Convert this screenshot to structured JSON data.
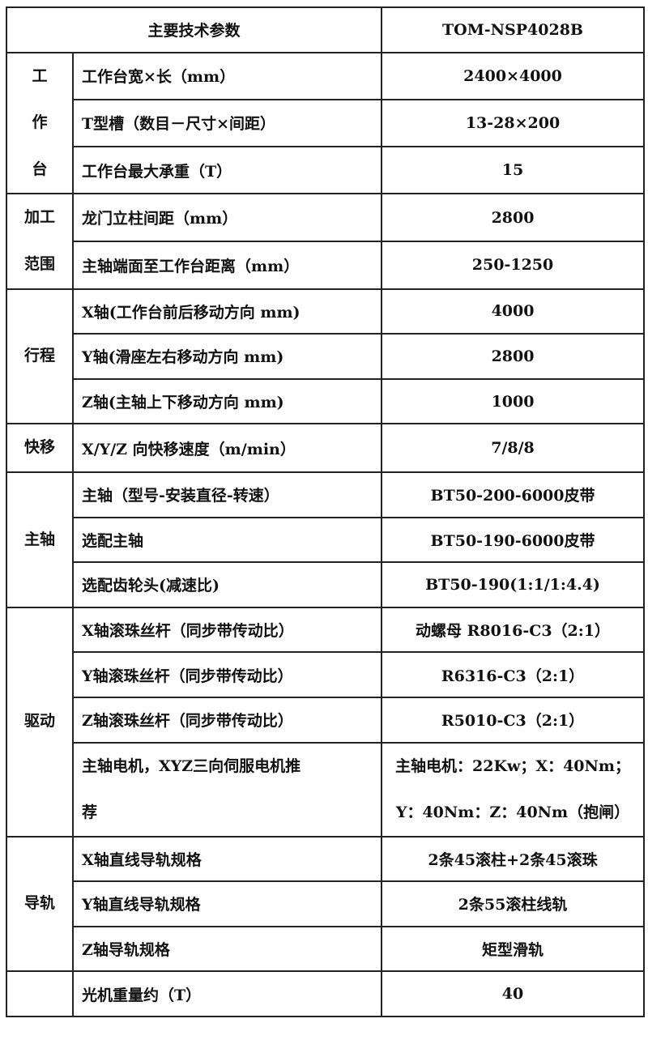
{
  "header": {
    "title": "主要技术参数",
    "model": "TOM-NSP4028B"
  },
  "groups": [
    {
      "label_lines": [
        "工",
        "作",
        "台"
      ],
      "rows": [
        {
          "param": "工作台宽×长（mm）",
          "value": "2400×4000"
        },
        {
          "param": "T型槽（数目－尺寸×间距）",
          "value": "13-28×200"
        },
        {
          "param": "工作台最大承重（T）",
          "value": "15"
        }
      ]
    },
    {
      "label_lines": [
        "加工",
        "范围"
      ],
      "rows": [
        {
          "param": "龙门立柱间距（mm）",
          "value": "2800"
        },
        {
          "param": "主轴端面至工作台距离（mm）",
          "value": "250-1250"
        }
      ]
    },
    {
      "label_lines": [
        "行程"
      ],
      "rows": [
        {
          "param": "X轴(工作台前后移动方向 mm)",
          "value": "4000"
        },
        {
          "param": "Y轴(滑座左右移动方向 mm)",
          "value": "2800"
        },
        {
          "param": "Z轴(主轴上下移动方向 mm)",
          "value": "1000"
        }
      ]
    },
    {
      "label_lines": [
        "快移"
      ],
      "rows": [
        {
          "param": "X/Y/Z 向快移速度（m/min）",
          "value": "7/8/8"
        }
      ]
    },
    {
      "label_lines": [
        "主轴"
      ],
      "rows": [
        {
          "param": "主轴（型号-安装直径-转速）",
          "value": "BT50-200-6000皮带"
        },
        {
          "param": "选配主轴",
          "value": "BT50-190-6000皮带"
        },
        {
          "param": "选配齿轮头(减速比)",
          "value": "BT50-190(1:1/1:4.4)"
        }
      ]
    },
    {
      "label_lines": [
        "驱动"
      ],
      "rows": [
        {
          "param": "X轴滚珠丝杆（同步带传动比）",
          "value": "动螺母 R8016-C3（2:1）"
        },
        {
          "param": "Y轴滚珠丝杆（同步带传动比）",
          "value": "R6316-C3（2:1）"
        },
        {
          "param": "Z轴滚珠丝杆（同步带传动比）",
          "value": "R5010-C3（2:1）"
        },
        {
          "param_lines": [
            "主轴电机，XYZ三向伺服电机推",
            "荐"
          ],
          "value_lines": [
            "主轴电机：22Kw；X：40Nm；",
            "Y：40Nm：Z：40Nm（抱闸）"
          ]
        }
      ]
    },
    {
      "label_lines": [
        "导轨"
      ],
      "rows": [
        {
          "param": "X轴直线导轨规格",
          "value": "2条45滚柱+2条45滚珠"
        },
        {
          "param": "Y轴直线导轨规格",
          "value": "2条55滚柱线轨"
        },
        {
          "param": "Z轴导轨规格",
          "value": "矩型滑轨"
        }
      ]
    },
    {
      "label_lines": [],
      "rows": [
        {
          "param": "光机重量约（T）",
          "value": "40"
        }
      ]
    }
  ]
}
